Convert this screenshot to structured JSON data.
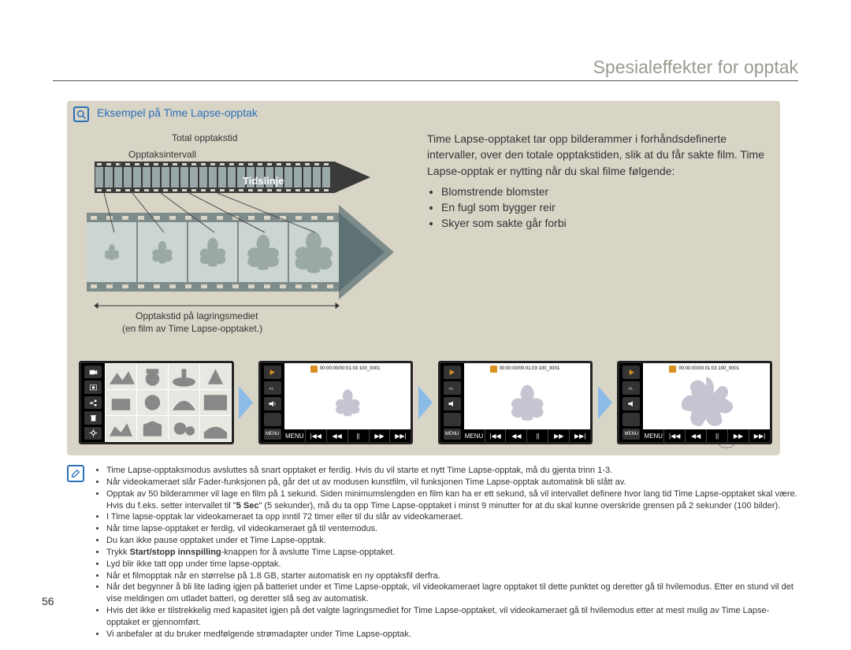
{
  "pageTitle": "Spesialeffekter for opptak",
  "example": {
    "title": "Eksempel på Time Lapse-opptak",
    "labels": {
      "total": "Total opptakstid",
      "interval": "Opptaksintervall",
      "timeline": "Tidslinje",
      "storageTime1": "Opptakstid på lagringsmediet",
      "storageTime2": "(en film av Time Lapse-opptaket.)"
    }
  },
  "description": {
    "intro": "Time Lapse-opptaket tar opp bilderammer i forhåndsdefinerte intervaller, over den totale opptakstiden, slik at du får sakte film. Time Lapse-opptak er nytting når du skal filme følgende:",
    "items": [
      "Blomstrende blomster",
      "En fugl som bygger reir",
      "Skyer som sakte går forbi"
    ]
  },
  "screenTopbar": "00:00:00/00:01:03   100_0001",
  "transport": [
    "MENU",
    "|◀◀",
    "◀◀",
    "||",
    "▶▶",
    "▶▶|"
  ],
  "notes": [
    "Time Lapse-opptaksmodus avsluttes så snart opptaket er ferdig. Hvis du vil starte et nytt Time Lapse-opptak, må du gjenta trinn 1-3.",
    "Når videokameraet slår Fader-funksjonen på, går det ut av modusen kunstfilm, vil funksjonen Time Lapse-opptak automatisk bli slått av.",
    "Opptak av 50 bilderammer vil lage en film på 1 sekund. Siden minimumslengden en film kan ha er ett sekund, så vil intervallet definere hvor lang tid Time Lapse-opptaket skal være. Hvis du f.eks. setter intervallet til \"5 Sec\" (5 sekunder), må du ta opp Time Lapse-opptaket i minst 9 minutter for at du skal kunne overskride grensen på 2 sekunder (100 bilder).",
    "I Time lapse-opptak lar videokameraet ta opp inntil 72 timer eller til du slår av videokameraet.",
    "Når time lapse-opptaket er ferdig, vil videokameraet gå til ventemodus.",
    "Du kan ikke pause opptaket under et Time Lapse-opptak.",
    "Trykk Start/stopp innspilling-knappen for å avslutte Time Lapse-opptaket.",
    "Lyd blir ikke tatt opp under time lapse-opptak.",
    "Når et filmopptak når en størrelse på 1.8 GB, starter automatisk en ny opptaksfil derfra.",
    "Når det begynner å bli lite lading igjen på batteriet under et Time Lapse-opptak, vil videokameraet lagre opptaket til dette punktet og deretter gå til hvilemodus. Etter en stund vil det vise meldingen om utladet batteri, og deretter slå seg av automatisk.",
    "Hvis det ikke er tilstrekkelig med kapasitet igjen på det valgte lagringsmediet for Time Lapse-opptaket, vil videokameraet gå til hvilemodus etter at mest mulig av Time Lapse-opptaket er gjennomført.",
    "Vi anbefaler at du bruker medfølgende strømadapter under Time Lapse-opptak."
  ],
  "boldNote": "Start/stopp innspilling",
  "pageNumber": "56",
  "colors": {
    "boxBg": "#d8d5c7",
    "accent": "#2b70b6",
    "arrowBlue": "#8bbce8",
    "arrowDark": "#5e7174",
    "filmGray": "#b5b5ad"
  }
}
